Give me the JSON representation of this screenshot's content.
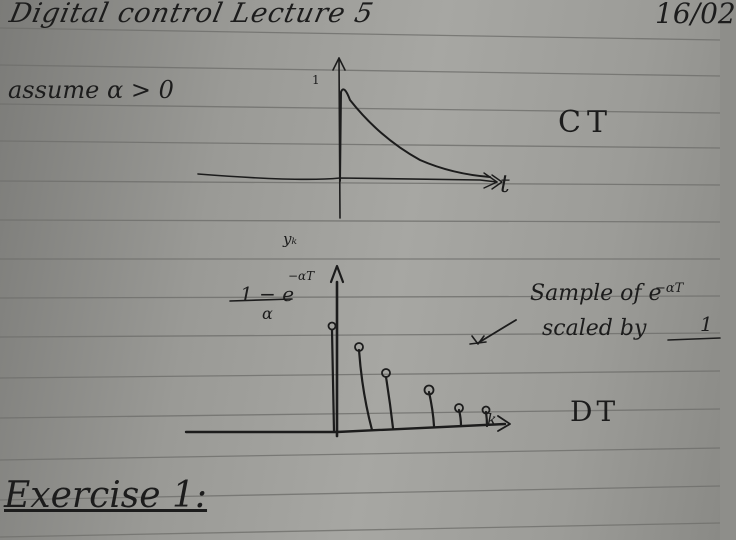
{
  "heading": {
    "title": "Digital control Lecture 5",
    "date": "16/02"
  },
  "top_sketch": {
    "assumption": "assume α > 0",
    "value_label": "1",
    "axis_label": "t",
    "tag": "CT"
  },
  "bottom_sketch": {
    "y_label": "yₖ",
    "fraction_numerator": "1 − e",
    "fraction_exponent": "−αT",
    "fraction_denominator": "α",
    "axis_label": "k",
    "tag": "DT",
    "note_line1": "Sample of e",
    "note_line1_exponent": "−αT",
    "note_line2": "scaled by",
    "note_line2_fraction_fragment": "1"
  },
  "section": {
    "heading": "Exercise 1:"
  },
  "colors": {
    "ink": "#1c1c1c",
    "paper_rule": "#6f6f6c"
  }
}
